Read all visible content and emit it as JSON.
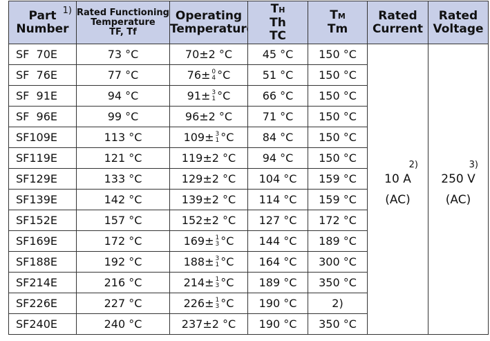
{
  "header": [
    {
      "note": "1)",
      "lines": [
        "Part",
        "Number"
      ]
    },
    {
      "lines": [
        "Rated Functioning",
        "Temperature",
        "TF, Tf"
      ],
      "small": true
    },
    {
      "lines": [
        "Operating",
        "Temperature"
      ]
    },
    {
      "symbol": "T",
      "sub": "H",
      "lines": [
        "Th",
        "TC"
      ]
    },
    {
      "symbol": "T",
      "sub": "M",
      "lines": [
        "Tm"
      ]
    },
    {
      "lines": [
        "Rated",
        "Current"
      ]
    },
    {
      "lines": [
        "Rated",
        "Voltage"
      ]
    }
  ],
  "rows": [
    {
      "part": "SF  70E",
      "tf": "73 °C",
      "op": {
        "text": "70±2 °C"
      },
      "th": "45 °C",
      "tm": "150 °C"
    },
    {
      "part": "SF  76E",
      "tf": "77 °C",
      "op": {
        "base": "76±",
        "upper": "0",
        "lower": "4",
        "unit": "°C"
      },
      "th": "51 °C",
      "tm": "150 °C"
    },
    {
      "part": "SF  91E",
      "tf": "94 °C",
      "op": {
        "base": "91±",
        "upper": "3",
        "lower": "1",
        "unit": "°C"
      },
      "th": "66 °C",
      "tm": "150 °C"
    },
    {
      "part": "SF  96E",
      "tf": "99 °C",
      "op": {
        "text": "96±2 °C"
      },
      "th": "71 °C",
      "tm": "150 °C"
    },
    {
      "part": "SF109E",
      "tf": "113 °C",
      "op": {
        "base": "109±",
        "upper": "3",
        "lower": "1",
        "unit": "°C"
      },
      "th": "84 °C",
      "tm": "150 °C"
    },
    {
      "part": "SF119E",
      "tf": "121 °C",
      "op": {
        "text": "119±2 °C"
      },
      "th": "94 °C",
      "tm": "150 °C"
    },
    {
      "part": "SF129E",
      "tf": "133 °C",
      "op": {
        "text": "129±2 °C"
      },
      "th": "104 °C",
      "tm": "159 °C"
    },
    {
      "part": "SF139E",
      "tf": "142 °C",
      "op": {
        "text": "139±2 °C"
      },
      "th": "114 °C",
      "tm": "159 °C"
    },
    {
      "part": "SF152E",
      "tf": "157 °C",
      "op": {
        "text": "152±2 °C"
      },
      "th": "127 °C",
      "tm": "172 °C"
    },
    {
      "part": "SF169E",
      "tf": "172 °C",
      "op": {
        "base": "169±",
        "upper": "1",
        "lower": "3",
        "unit": "°C"
      },
      "th": "144 °C",
      "tm": "189 °C"
    },
    {
      "part": "SF188E",
      "tf": "192 °C",
      "op": {
        "base": "188±",
        "upper": "3",
        "lower": "1",
        "unit": "°C"
      },
      "th": "164 °C",
      "tm": "300 °C"
    },
    {
      "part": "SF214E",
      "tf": "216 °C",
      "op": {
        "base": "214±",
        "upper": "1",
        "lower": "3",
        "unit": "°C"
      },
      "th": "189 °C",
      "tm": "350 °C"
    },
    {
      "part": "SF226E",
      "tf": "227 °C",
      "op": {
        "base": "226±",
        "upper": "1",
        "lower": "3",
        "unit": "°C"
      },
      "th": "190 °C",
      "tm": "2)"
    },
    {
      "part": "SF240E",
      "tf": "240 °C",
      "op": {
        "text": "237±2 °C"
      },
      "th": "190 °C",
      "tm": "350 °C"
    }
  ],
  "current": {
    "note": "2)",
    "value": "10 A",
    "type": "(AC)"
  },
  "voltage": {
    "note": "3)",
    "value": "250 V",
    "type": "(AC)"
  }
}
